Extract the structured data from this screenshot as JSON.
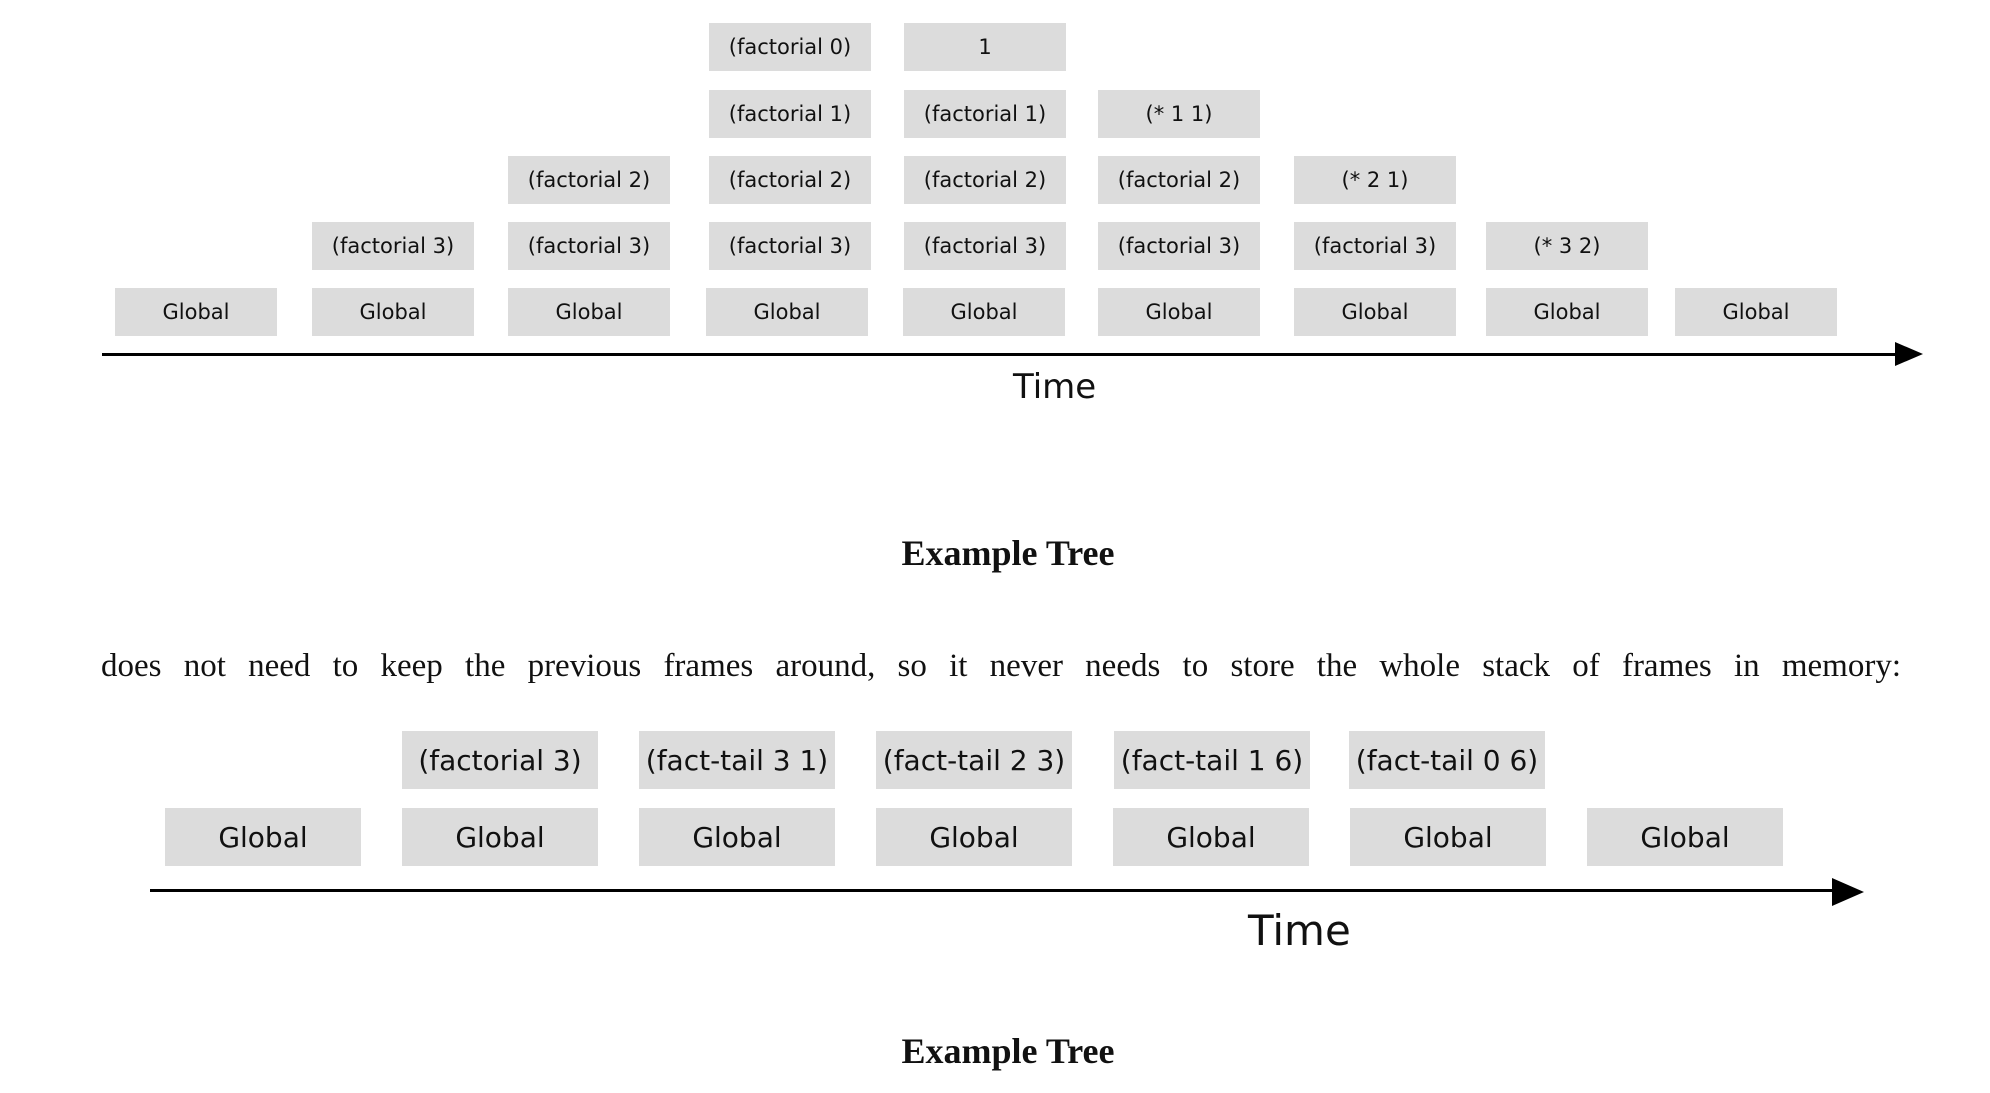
{
  "diagram1": {
    "frames": [
      {
        "id": "d1-c1-r0",
        "text": "Global"
      },
      {
        "id": "d1-c2-r1",
        "text": "(factorial 3)"
      },
      {
        "id": "d1-c2-r0",
        "text": "Global"
      },
      {
        "id": "d1-c3-r2",
        "text": "(factorial 2)"
      },
      {
        "id": "d1-c3-r1",
        "text": "(factorial 3)"
      },
      {
        "id": "d1-c3-r0",
        "text": "Global"
      },
      {
        "id": "d1-c4-r4",
        "text": "(factorial 0)"
      },
      {
        "id": "d1-c4-r3",
        "text": "(factorial 1)"
      },
      {
        "id": "d1-c4-r2",
        "text": "(factorial 2)"
      },
      {
        "id": "d1-c4-r1",
        "text": "(factorial 3)"
      },
      {
        "id": "d1-c4-r0",
        "text": "Global"
      },
      {
        "id": "d1-c5-r4",
        "text": "1"
      },
      {
        "id": "d1-c5-r3",
        "text": "(factorial 1)"
      },
      {
        "id": "d1-c5-r2",
        "text": "(factorial 2)"
      },
      {
        "id": "d1-c5-r1",
        "text": "(factorial 3)"
      },
      {
        "id": "d1-c5-r0",
        "text": "Global"
      },
      {
        "id": "d1-c6-r3",
        "text": "(* 1 1)"
      },
      {
        "id": "d1-c6-r2",
        "text": "(factorial 2)"
      },
      {
        "id": "d1-c6-r1",
        "text": "(factorial 3)"
      },
      {
        "id": "d1-c6-r0",
        "text": "Global"
      },
      {
        "id": "d1-c7-r2",
        "text": "(* 2 1)"
      },
      {
        "id": "d1-c7-r1",
        "text": "(factorial 3)"
      },
      {
        "id": "d1-c7-r0",
        "text": "Global"
      },
      {
        "id": "d1-c8-r1",
        "text": "(* 3 2)"
      },
      {
        "id": "d1-c8-r0",
        "text": "Global"
      },
      {
        "id": "d1-c9-r0",
        "text": "Global"
      }
    ],
    "axis_label": "Time",
    "caption": "Example Tree"
  },
  "paragraph": "does not need to keep the previous frames around, so it never needs to store the whole stack of frames in memory:",
  "diagram2": {
    "frames": [
      {
        "id": "d2-c1-r0",
        "text": "Global"
      },
      {
        "id": "d2-c2-r1",
        "text": "(factorial 3)"
      },
      {
        "id": "d2-c2-r0",
        "text": "Global"
      },
      {
        "id": "d2-c3-r1",
        "text": "(fact-tail 3 1)"
      },
      {
        "id": "d2-c3-r0",
        "text": "Global"
      },
      {
        "id": "d2-c4-r1",
        "text": "(fact-tail 2 3)"
      },
      {
        "id": "d2-c4-r0",
        "text": "Global"
      },
      {
        "id": "d2-c5-r1",
        "text": "(fact-tail 1 6)"
      },
      {
        "id": "d2-c5-r0",
        "text": "Global"
      },
      {
        "id": "d2-c6-r1",
        "text": "(fact-tail 0 6)"
      },
      {
        "id": "d2-c6-r0",
        "text": "Global"
      },
      {
        "id": "d2-c7-r0",
        "text": "Global"
      }
    ],
    "axis_label": "Time",
    "caption": "Example Tree"
  },
  "colors": {
    "frame_fill": "#dcdcdc",
    "axis": "#000000",
    "text": "#111111"
  }
}
